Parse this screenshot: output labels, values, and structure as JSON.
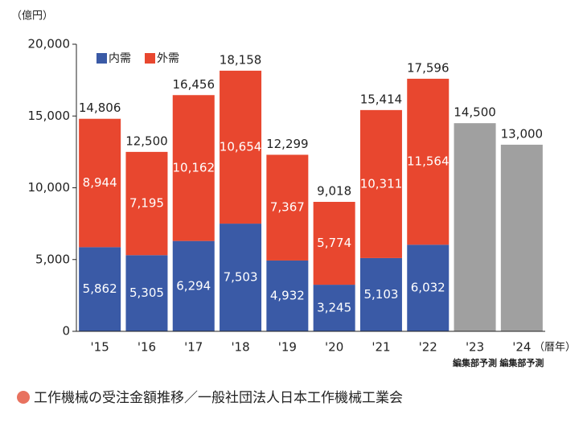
{
  "chart_data": {
    "type": "stacked-bar",
    "y_unit": "（億円）",
    "x_unit": "（暦年）",
    "categories": [
      "'15",
      "'16",
      "'17",
      "'18",
      "'19",
      "'20",
      "'21",
      "'22",
      "'23",
      "'24"
    ],
    "category_notes": [
      null,
      null,
      null,
      null,
      null,
      null,
      null,
      null,
      "編集部予測",
      "編集部予測"
    ],
    "series": [
      {
        "name": "内需",
        "color": "#3a5aa6",
        "values": [
          5862,
          5305,
          6294,
          7503,
          4932,
          3245,
          5103,
          6032,
          null,
          null
        ],
        "value_labels": [
          "5,862",
          "5,305",
          "6,294",
          "7,503",
          "4,932",
          "3,245",
          "5,103",
          "6,032",
          null,
          null
        ]
      },
      {
        "name": "外需",
        "color": "#e8472f",
        "values": [
          8944,
          7195,
          10162,
          10654,
          7367,
          5774,
          10311,
          11564,
          null,
          null
        ],
        "value_labels": [
          "8,944",
          "7,195",
          "10,162",
          "10,654",
          "7,367",
          "5,774",
          "10,311",
          "11,564",
          null,
          null
        ]
      },
      {
        "color": "#a0a0a0",
        "values": [
          null,
          null,
          null,
          null,
          null,
          null,
          null,
          null,
          14500,
          13000
        ],
        "value_labels": [
          null,
          null,
          null,
          null,
          null,
          null,
          null,
          null,
          "14,500",
          "13,000"
        ]
      }
    ],
    "totals": [
      14806,
      12500,
      16456,
      18158,
      12299,
      9018,
      15414,
      17596,
      null,
      null
    ],
    "total_labels": [
      "14,806",
      "12,500",
      "16,456",
      "18,158",
      "12,299",
      "9,018",
      "15,414",
      "17,596",
      null,
      null
    ],
    "ylim": [
      0,
      20000
    ],
    "yticks": [
      0,
      {
        "value": 5000,
        "label": "5,000"
      },
      {
        "value": 10000,
        "label": "10,000"
      },
      {
        "value": 15000,
        "label": "15,000"
      },
      {
        "value": 20000,
        "label": "20,000"
      }
    ],
    "caption": "工作機械の受注金額推移／一般社団法人日本工作機械工業会"
  }
}
